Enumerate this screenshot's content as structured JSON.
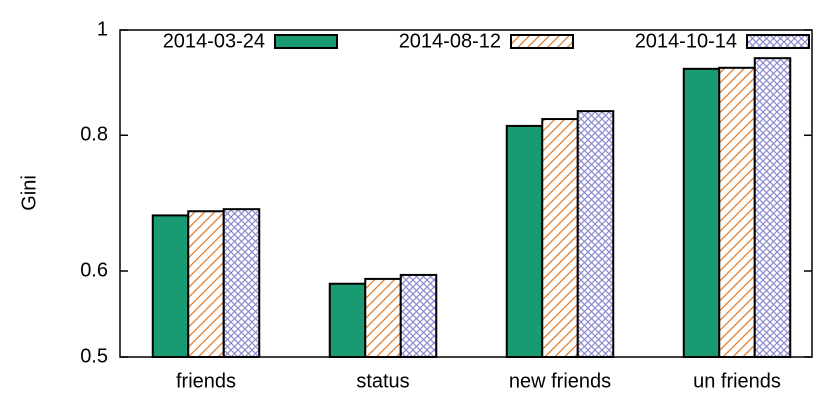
{
  "chart_data": {
    "type": "bar",
    "y_label": "Gini",
    "categories": [
      "friends",
      "status",
      "new friends",
      "un friends"
    ],
    "series": [
      {
        "name": "2014-03-24",
        "color": "#1a9a73",
        "pattern": "solid",
        "values": [
          0.675,
          0.584,
          0.816,
          0.921
        ]
      },
      {
        "name": "2014-08-12",
        "color": "#e07b2a",
        "pattern": "diagonal",
        "values": [
          0.681,
          0.59,
          0.828,
          0.923
        ]
      },
      {
        "name": "2014-10-14",
        "color": "#8a8ad0",
        "pattern": "crosshatch",
        "values": [
          0.684,
          0.595,
          0.842,
          0.942
        ]
      }
    ],
    "ylim": [
      0.5,
      1
    ],
    "yticks": [
      0.5,
      0.6,
      0.8,
      1
    ],
    "y_log_scale": true,
    "legend": "top"
  }
}
